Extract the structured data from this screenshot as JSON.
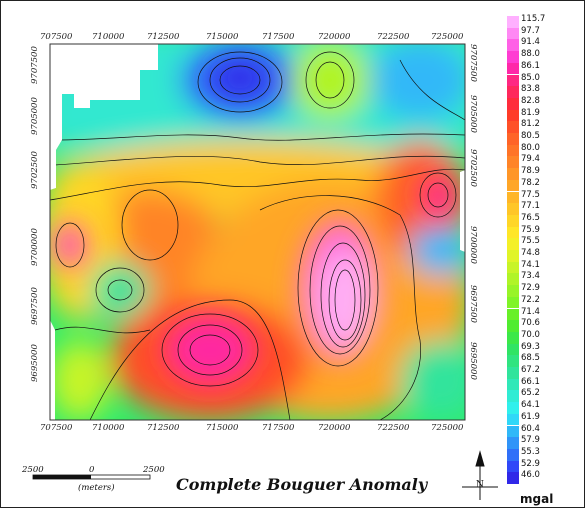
{
  "title": "Complete Bouguer Anomaly",
  "x_ticks": [
    "707500",
    "710000",
    "712500",
    "715000",
    "717500",
    "720000",
    "722500",
    "725000"
  ],
  "y_ticks": [
    "9707500",
    "9705000",
    "9702500",
    "9700000",
    "9697500",
    "9695000"
  ],
  "legend": {
    "unit": "mgal",
    "values": [
      "115.7",
      "97.7",
      "91.4",
      "88.0",
      "86.1",
      "85.0",
      "83.8",
      "82.8",
      "81.9",
      "81.2",
      "80.5",
      "80.0",
      "79.4",
      "78.9",
      "78.2",
      "77.5",
      "77.1",
      "76.5",
      "75.9",
      "75.5",
      "74.8",
      "74.1",
      "73.4",
      "72.9",
      "72.2",
      "71.4",
      "70.6",
      "70.0",
      "69.3",
      "68.5",
      "67.2",
      "66.1",
      "65.2",
      "64.1",
      "61.9",
      "60.4",
      "57.9",
      "55.3",
      "52.9",
      "46.0"
    ],
    "colors": [
      "#ffb0ff",
      "#ff88f4",
      "#ff60e6",
      "#ff3cd2",
      "#ff28a8",
      "#ff2882",
      "#ff285c",
      "#ff2c3c",
      "#ff3c28",
      "#ff5028",
      "#ff6428",
      "#ff7428",
      "#ff8428",
      "#ff9628",
      "#ffa628",
      "#ffb628",
      "#ffc628",
      "#ffd628",
      "#ffe628",
      "#f4f028",
      "#e0f428",
      "#c8f428",
      "#b0f428",
      "#98f428",
      "#80f428",
      "#68f028",
      "#50ec30",
      "#3ce848",
      "#30e464",
      "#30e480",
      "#30e49c",
      "#30e8b8",
      "#30ecd4",
      "#30f0ec",
      "#30d8f8",
      "#30b8f8",
      "#3094f8",
      "#3070f8",
      "#3048f8",
      "#3028e8"
    ]
  },
  "scale_bar": {
    "labels": [
      "2500",
      "0",
      "2500"
    ],
    "unit": "(meters)"
  },
  "north_arrow": "N"
}
